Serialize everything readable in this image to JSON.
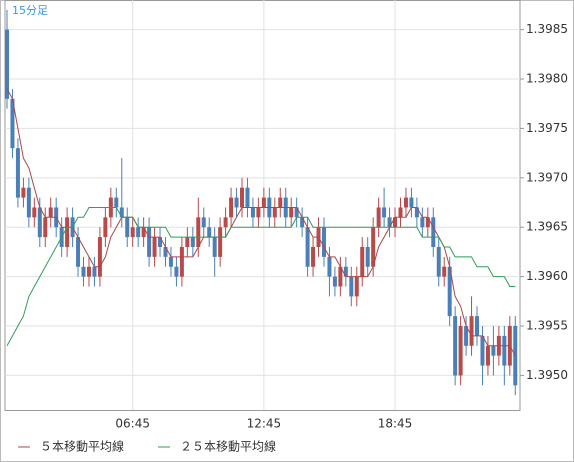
{
  "chart_data": {
    "type": "candlestick",
    "label": "15分足",
    "categories": [
      null,
      null,
      null,
      null,
      null,
      null,
      null,
      null,
      null,
      null,
      null,
      null,
      null,
      null,
      null,
      null,
      null,
      null,
      null,
      null,
      null,
      null,
      null,
      "06:45",
      null,
      null,
      null,
      null,
      null,
      null,
      null,
      null,
      null,
      null,
      null,
      null,
      null,
      null,
      null,
      null,
      null,
      null,
      null,
      null,
      null,
      null,
      null,
      "12:45",
      null,
      null,
      null,
      null,
      null,
      null,
      null,
      null,
      null,
      null,
      null,
      null,
      null,
      null,
      null,
      null,
      null,
      null,
      null,
      null,
      null,
      null,
      null,
      "18:45",
      null,
      null,
      null,
      null,
      null,
      null,
      null,
      null,
      null,
      null,
      null,
      null,
      null,
      null,
      null,
      null,
      null,
      null,
      null,
      null,
      null,
      null
    ],
    "open": [
      1.3985,
      1.3978,
      1.3973,
      1.3968,
      1.3969,
      1.3966,
      1.3967,
      1.3964,
      1.3966,
      1.3967,
      1.3965,
      1.3963,
      1.3966,
      1.3964,
      1.3961,
      1.396,
      1.3961,
      1.396,
      1.3964,
      1.3966,
      1.3968,
      1.3967,
      1.3966,
      1.3964,
      1.3965,
      1.3964,
      1.3965,
      1.3962,
      1.3964,
      1.3963,
      1.3962,
      1.3961,
      1.396,
      1.3963,
      1.3964,
      1.3963,
      1.3966,
      1.3965,
      1.3964,
      1.3962,
      1.3965,
      1.3966,
      1.3968,
      1.3967,
      1.3969,
      1.3967,
      1.3966,
      1.3967,
      1.3968,
      1.3966,
      1.3967,
      1.3968,
      1.3966,
      1.3967,
      1.3966,
      1.3965,
      1.3961,
      1.3963,
      1.3965,
      1.3962,
      1.396,
      1.3959,
      1.3961,
      1.396,
      1.3958,
      1.396,
      1.3963,
      1.3961,
      1.3965,
      1.3967,
      1.3966,
      1.3965,
      1.3966,
      1.3967,
      1.3968,
      1.3967,
      1.3966,
      1.3965,
      1.3966,
      1.3963,
      1.396,
      1.3961,
      1.3956,
      1.395,
      1.3955,
      1.3953,
      1.3956,
      1.3954,
      1.3951,
      1.3953,
      1.3952,
      1.3954,
      1.3951,
      1.3955
    ],
    "high": [
      1.3987,
      1.3979,
      1.3974,
      1.397,
      1.397,
      1.3968,
      1.3968,
      1.3967,
      1.3968,
      1.3968,
      1.3966,
      1.3967,
      1.3967,
      1.3965,
      1.3962,
      1.3962,
      1.3962,
      1.3965,
      1.3967,
      1.3969,
      1.3969,
      1.3972,
      1.3967,
      1.3966,
      1.3966,
      1.3966,
      1.3966,
      1.3965,
      1.3965,
      1.3964,
      1.3963,
      1.3962,
      1.3964,
      1.3965,
      1.3965,
      1.3968,
      1.3967,
      1.3966,
      1.3965,
      1.3966,
      1.3967,
      1.3969,
      1.3969,
      1.397,
      1.397,
      1.3968,
      1.3968,
      1.3969,
      1.3969,
      1.3968,
      1.3969,
      1.3969,
      1.3968,
      1.3968,
      1.3967,
      1.3966,
      1.3964,
      1.3966,
      1.3966,
      1.3963,
      1.3961,
      1.3962,
      1.3962,
      1.3961,
      1.3961,
      1.3964,
      1.3964,
      1.3966,
      1.3968,
      1.3969,
      1.3967,
      1.3967,
      1.3968,
      1.3969,
      1.3969,
      1.3968,
      1.3967,
      1.3967,
      1.3967,
      1.3964,
      1.3962,
      1.3962,
      1.3957,
      1.3956,
      1.3956,
      1.3958,
      1.3957,
      1.3955,
      1.3954,
      1.3955,
      1.3955,
      1.3955,
      1.3956,
      1.3956
    ],
    "low": [
      1.3977,
      1.3972,
      1.3967,
      1.3967,
      1.3965,
      1.3965,
      1.3963,
      1.3963,
      1.3965,
      1.3964,
      1.3962,
      1.3962,
      1.3963,
      1.396,
      1.3959,
      1.3959,
      1.3959,
      1.3959,
      1.3963,
      1.3965,
      1.3966,
      1.3965,
      1.3963,
      1.3963,
      1.3963,
      1.3963,
      1.3961,
      1.3961,
      1.3962,
      1.3961,
      1.396,
      1.3959,
      1.3959,
      1.3962,
      1.3962,
      1.3962,
      1.3964,
      1.3963,
      1.396,
      1.3961,
      1.3964,
      1.3965,
      1.3966,
      1.3966,
      1.3966,
      1.3965,
      1.3965,
      1.3966,
      1.3965,
      1.3965,
      1.3966,
      1.3965,
      1.3965,
      1.3965,
      1.3964,
      1.396,
      1.396,
      1.3962,
      1.3961,
      1.3958,
      1.3958,
      1.3958,
      1.3959,
      1.3957,
      1.3957,
      1.3959,
      1.396,
      1.396,
      1.3964,
      1.3965,
      1.3964,
      1.3964,
      1.3965,
      1.3966,
      1.3966,
      1.3965,
      1.3964,
      1.3964,
      1.3962,
      1.3959,
      1.3959,
      1.3955,
      1.3949,
      1.3949,
      1.3952,
      1.3952,
      1.3953,
      1.3949,
      1.395,
      1.395,
      1.3951,
      1.3949,
      1.395,
      1.3948
    ],
    "close": [
      1.3978,
      1.3973,
      1.3968,
      1.3969,
      1.3966,
      1.3967,
      1.3964,
      1.3966,
      1.3967,
      1.3965,
      1.3963,
      1.3966,
      1.3964,
      1.3961,
      1.396,
      1.3961,
      1.396,
      1.3964,
      1.3966,
      1.3968,
      1.3967,
      1.3966,
      1.3964,
      1.3965,
      1.3964,
      1.3965,
      1.3962,
      1.3964,
      1.3963,
      1.3962,
      1.3961,
      1.396,
      1.3963,
      1.3964,
      1.3963,
      1.3966,
      1.3965,
      1.3964,
      1.3962,
      1.3965,
      1.3966,
      1.3968,
      1.3967,
      1.3969,
      1.3967,
      1.3966,
      1.3967,
      1.3968,
      1.3966,
      1.3967,
      1.3968,
      1.3966,
      1.3967,
      1.3966,
      1.3965,
      1.3961,
      1.3963,
      1.3965,
      1.3962,
      1.396,
      1.3959,
      1.3961,
      1.396,
      1.3958,
      1.396,
      1.3963,
      1.3961,
      1.3965,
      1.3967,
      1.3966,
      1.3965,
      1.3966,
      1.3967,
      1.3968,
      1.3967,
      1.3966,
      1.3965,
      1.3966,
      1.3963,
      1.396,
      1.3961,
      1.3956,
      1.395,
      1.3955,
      1.3953,
      1.3956,
      1.3954,
      1.3951,
      1.3953,
      1.3952,
      1.3954,
      1.3951,
      1.3955,
      1.3949
    ],
    "up_color": "#b84a4a",
    "down_color": "#4a7fb8",
    "series": [
      {
        "name": "５本移動平均線",
        "color": "#a84848",
        "values": [
          1.3979,
          1.3978,
          1.3975,
          1.3972,
          1.3971,
          1.3969,
          1.3967,
          1.3966,
          1.3966,
          1.3966,
          1.3965,
          1.3965,
          1.3965,
          1.3964,
          1.3963,
          1.3962,
          1.3961,
          1.3961,
          1.3962,
          1.3964,
          1.3965,
          1.3966,
          1.3966,
          1.3966,
          1.3965,
          1.3965,
          1.3964,
          1.3964,
          1.3964,
          1.3963,
          1.3962,
          1.3962,
          1.3962,
          1.3962,
          1.3962,
          1.3963,
          1.3964,
          1.3964,
          1.3964,
          1.3964,
          1.3964,
          1.3965,
          1.3966,
          1.3967,
          1.3967,
          1.3967,
          1.3967,
          1.3967,
          1.3967,
          1.3967,
          1.3967,
          1.3967,
          1.3967,
          1.3967,
          1.3966,
          1.3965,
          1.3964,
          1.3964,
          1.3963,
          1.3962,
          1.3962,
          1.3961,
          1.396,
          1.396,
          1.396,
          1.396,
          1.396,
          1.3961,
          1.3963,
          1.3964,
          1.3965,
          1.3966,
          1.3966,
          1.3966,
          1.3967,
          1.3967,
          1.3966,
          1.3966,
          1.3965,
          1.3964,
          1.3963,
          1.3961,
          1.3958,
          1.3957,
          1.3955,
          1.3954,
          1.3954,
          1.3954,
          1.3953,
          1.3953,
          1.3953,
          1.3953,
          1.3953,
          1.3952
        ]
      },
      {
        "name": "２５本移動平均線",
        "color": "#2e9e5a",
        "values": [
          1.3953,
          1.3954,
          1.3955,
          1.3956,
          1.3958,
          1.3959,
          1.396,
          1.3961,
          1.3962,
          1.3963,
          1.3964,
          1.3965,
          1.3965,
          1.3966,
          1.3966,
          1.3967,
          1.3967,
          1.3967,
          1.3967,
          1.3967,
          1.3967,
          1.3966,
          1.3966,
          1.3966,
          1.3965,
          1.3965,
          1.3965,
          1.3965,
          1.3965,
          1.3965,
          1.3964,
          1.3964,
          1.3964,
          1.3964,
          1.3964,
          1.3964,
          1.3964,
          1.3964,
          1.3964,
          1.3964,
          1.3964,
          1.3965,
          1.3965,
          1.3965,
          1.3965,
          1.3965,
          1.3965,
          1.3965,
          1.3965,
          1.3965,
          1.3965,
          1.3965,
          1.3965,
          1.3966,
          1.3966,
          1.3966,
          1.3965,
          1.3965,
          1.3965,
          1.3965,
          1.3965,
          1.3965,
          1.3965,
          1.3965,
          1.3965,
          1.3965,
          1.3965,
          1.3965,
          1.3965,
          1.3965,
          1.3965,
          1.3965,
          1.3965,
          1.3965,
          1.3965,
          1.3965,
          1.3964,
          1.3964,
          1.3964,
          1.3964,
          1.3963,
          1.3963,
          1.3962,
          1.3962,
          1.3962,
          1.3962,
          1.3961,
          1.3961,
          1.3961,
          1.396,
          1.396,
          1.396,
          1.3959,
          1.3959
        ]
      }
    ],
    "ylim": [
      1.39465,
      1.3988
    ],
    "yticks": [
      {
        "value": 1.395,
        "label": "1.3950"
      },
      {
        "value": 1.3955,
        "label": "1.3955"
      },
      {
        "value": 1.396,
        "label": "1.3960"
      },
      {
        "value": 1.3965,
        "label": "1.3965"
      },
      {
        "value": 1.397,
        "label": "1.3970"
      },
      {
        "value": 1.3975,
        "label": "1.3975"
      },
      {
        "value": 1.398,
        "label": "1.3980"
      },
      {
        "value": 1.3985,
        "label": "1.3985"
      }
    ],
    "grid": true
  }
}
